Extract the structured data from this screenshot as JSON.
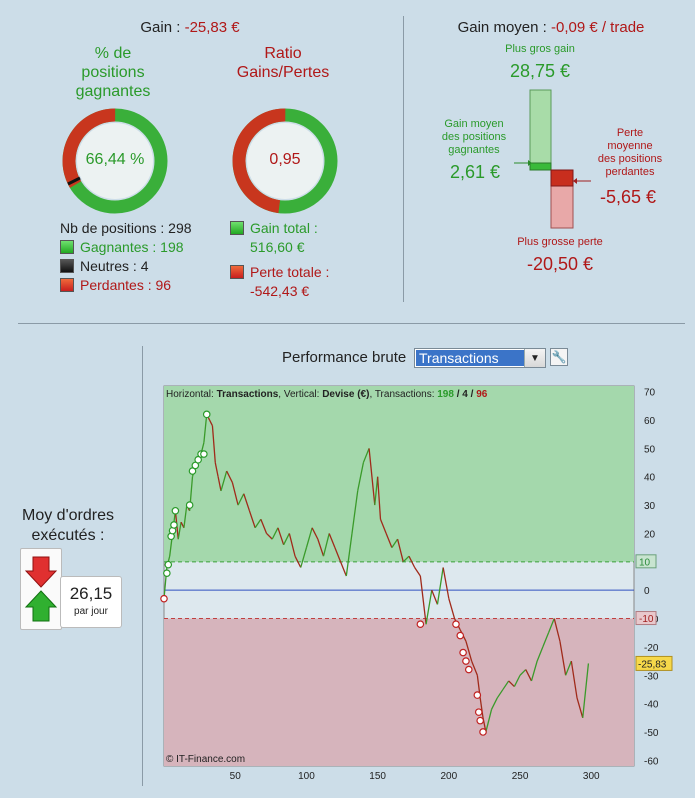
{
  "summary": {
    "gain_label": "Gain :",
    "gain_value": "-25,83 €",
    "pct_title_l1": "% de",
    "pct_title_l2": "positions",
    "pct_title_l3": "gagnantes",
    "pct_value": "66,44 %",
    "pct_fraction": 0.6644,
    "ratio_title_l1": "Ratio",
    "ratio_title_l2": "Gains/Pertes",
    "ratio_value": "0,95",
    "ratio_fraction": 0.52,
    "nb_positions": "Nb de positions : 298",
    "gagnantes": "Gagnantes : 198",
    "neutres": "Neutres : 4",
    "perdantes": "Perdantes : 96",
    "gain_total_label": "Gain total :",
    "gain_total_value": "516,60 €",
    "perte_totale_label": "Perte totale :",
    "perte_totale_value": "-542,43 €"
  },
  "average": {
    "label": "Gain moyen :",
    "value": "-0,09 € / trade",
    "best_label": "Plus gros gain",
    "best_value": "28,75 €",
    "avg_win_l1": "Gain moyen",
    "avg_win_l2": "des positions",
    "avg_win_l3": "gagnantes",
    "avg_win_value": "2,61 €",
    "avg_loss_l1": "Perte",
    "avg_loss_l2": "moyenne",
    "avg_loss_l3": "des positions",
    "avg_loss_l4": "perdantes",
    "avg_loss_value": "-5,65 €",
    "worst_label": "Plus grosse perte",
    "worst_value": "-20,50 €"
  },
  "orders": {
    "label_l1": "Moy d'ordres",
    "label_l2": "exécutés :",
    "value": "26,15",
    "unit": "par jour"
  },
  "perf": {
    "label": "Performance brute",
    "select_value": "Transactions"
  },
  "chart_data": {
    "type": "line",
    "header_pre": "Horizontal: ",
    "header_h": "Transactions",
    "header_mid": ", Vertical: ",
    "header_v": "Devise (€)",
    "header_tr": ", Transactions: ",
    "header_w": "198",
    "header_sep1": " / ",
    "header_n": "4",
    "header_sep2": " / ",
    "header_l": "96",
    "copyright": "© IT-Finance.com",
    "xlim": [
      0,
      330
    ],
    "ylim": [
      -62,
      72
    ],
    "x_ticks": [
      "50",
      "100",
      "150",
      "200",
      "250",
      "300"
    ],
    "x_tick_values": [
      50,
      100,
      150,
      200,
      250,
      300
    ],
    "y_ticks": [
      "70",
      "60",
      "50",
      "40",
      "30",
      "20",
      "10",
      "0",
      "-10",
      "-20",
      "-30",
      "-40",
      "-50",
      "-60"
    ],
    "y_tick_values": [
      70,
      60,
      50,
      40,
      30,
      20,
      10,
      0,
      -10,
      -20,
      -30,
      -40,
      -50,
      -60
    ],
    "upper_band": 10,
    "lower_band": -10,
    "upper_band_label": "10",
    "lower_band_label": "-10",
    "final_value": -25.83,
    "final_label": "-25,83",
    "series": [
      {
        "x": [
          0,
          2,
          4,
          6,
          8,
          10,
          12,
          14,
          16,
          18,
          20,
          22,
          24,
          26,
          28,
          30,
          32,
          34,
          36,
          38,
          40,
          44,
          48,
          52,
          56,
          60,
          64,
          68,
          72,
          76,
          80,
          84,
          88,
          92,
          96,
          100,
          104,
          108,
          112,
          116,
          120,
          124,
          128,
          132,
          136,
          140,
          144,
          148,
          150,
          152,
          156,
          160,
          164,
          168,
          172,
          176,
          180,
          184,
          188,
          192,
          196,
          200,
          204,
          208,
          212,
          216,
          220,
          222,
          224,
          226,
          230,
          234,
          238,
          242,
          246,
          250,
          254,
          258,
          262,
          266,
          270,
          274,
          278,
          282,
          286,
          290,
          294,
          298
        ],
        "y": [
          -3,
          8,
          12,
          20,
          28,
          18,
          24,
          22,
          30,
          28,
          40,
          44,
          45,
          48,
          52,
          62,
          60,
          58,
          45,
          40,
          35,
          42,
          38,
          30,
          34,
          28,
          22,
          25,
          20,
          18,
          22,
          16,
          20,
          12,
          8,
          15,
          22,
          18,
          12,
          20,
          15,
          10,
          5,
          20,
          35,
          45,
          50,
          30,
          40,
          25,
          20,
          15,
          18,
          10,
          12,
          8,
          5,
          -12,
          0,
          -5,
          8,
          -3,
          -10,
          -14,
          -18,
          -25,
          -30,
          -38,
          -45,
          -50,
          -42,
          -38,
          -35,
          -32,
          -34,
          -30,
          -28,
          -32,
          -25,
          -20,
          -15,
          -10,
          -18,
          -30,
          -25,
          -38,
          -45,
          -25.83
        ]
      }
    ],
    "markers": [
      {
        "x": 0,
        "y": -3,
        "type": "loss"
      },
      {
        "x": 2,
        "y": 6,
        "type": "win"
      },
      {
        "x": 3,
        "y": 9,
        "type": "win"
      },
      {
        "x": 5,
        "y": 19,
        "type": "win"
      },
      {
        "x": 6,
        "y": 21,
        "type": "win"
      },
      {
        "x": 7,
        "y": 23,
        "type": "win"
      },
      {
        "x": 8,
        "y": 28,
        "type": "win"
      },
      {
        "x": 18,
        "y": 30,
        "type": "win"
      },
      {
        "x": 20,
        "y": 42,
        "type": "win"
      },
      {
        "x": 22,
        "y": 44,
        "type": "win"
      },
      {
        "x": 24,
        "y": 46,
        "type": "win"
      },
      {
        "x": 26,
        "y": 48,
        "type": "win"
      },
      {
        "x": 28,
        "y": 48,
        "type": "win"
      },
      {
        "x": 30,
        "y": 62,
        "type": "win"
      },
      {
        "x": 180,
        "y": -12,
        "type": "loss"
      },
      {
        "x": 205,
        "y": -12,
        "type": "loss"
      },
      {
        "x": 208,
        "y": -16,
        "type": "loss"
      },
      {
        "x": 210,
        "y": -22,
        "type": "loss"
      },
      {
        "x": 212,
        "y": -25,
        "type": "loss"
      },
      {
        "x": 214,
        "y": -28,
        "type": "loss"
      },
      {
        "x": 220,
        "y": -37,
        "type": "loss"
      },
      {
        "x": 221,
        "y": -43,
        "type": "loss"
      },
      {
        "x": 222,
        "y": -46,
        "type": "loss"
      },
      {
        "x": 224,
        "y": -50,
        "type": "loss"
      }
    ]
  }
}
